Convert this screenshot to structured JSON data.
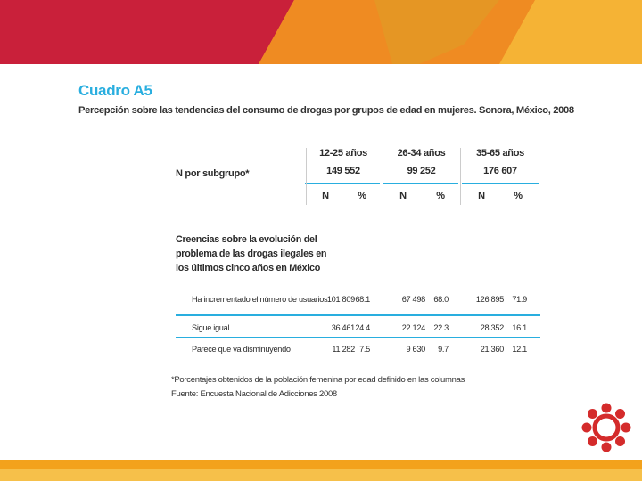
{
  "header": {
    "title": "Cuadro A5",
    "subtitle": "Percepción sobre las tendencias del consumo de drogas por grupos de edad en mujeres. Sonora, México, 2008"
  },
  "table": {
    "n_label": "N por subgrupo*",
    "groups": [
      {
        "label": "12-25 años",
        "total": "149 552"
      },
      {
        "label": "26-34 años",
        "total": "99 252"
      },
      {
        "label": "35-65 años",
        "total": "176 607"
      }
    ],
    "col_n": "N",
    "col_pct": "%",
    "section_label": "Creencias sobre la evolución del problema de las drogas ilegales en los últimos cinco años en México",
    "rows": [
      {
        "label": "Ha incrementado el número de usuarios",
        "values": [
          "101 809",
          "68.1",
          "67 498",
          "68.0",
          "126 895",
          "71.9"
        ]
      },
      {
        "label": "Sigue igual",
        "values": [
          "36 461",
          "24.4",
          "22 124",
          "22.3",
          "28 352",
          "16.1"
        ]
      },
      {
        "label": "Parece que va disminuyendo",
        "values": [
          "11 282",
          "7.5",
          "9 630",
          "9.7",
          "21 360",
          "12.1"
        ]
      }
    ]
  },
  "notes": {
    "footnote": "*Porcentajes obtenidos de la población femenina por edad definido en las columnas",
    "source": "Fuente: Encuesta Nacional de Adicciones 2008"
  },
  "colors": {
    "title": "#29aedf",
    "red": "#c9203a",
    "orange": "#ef8b22",
    "yellow": "#f5b335",
    "logo": "#d42b2b"
  }
}
